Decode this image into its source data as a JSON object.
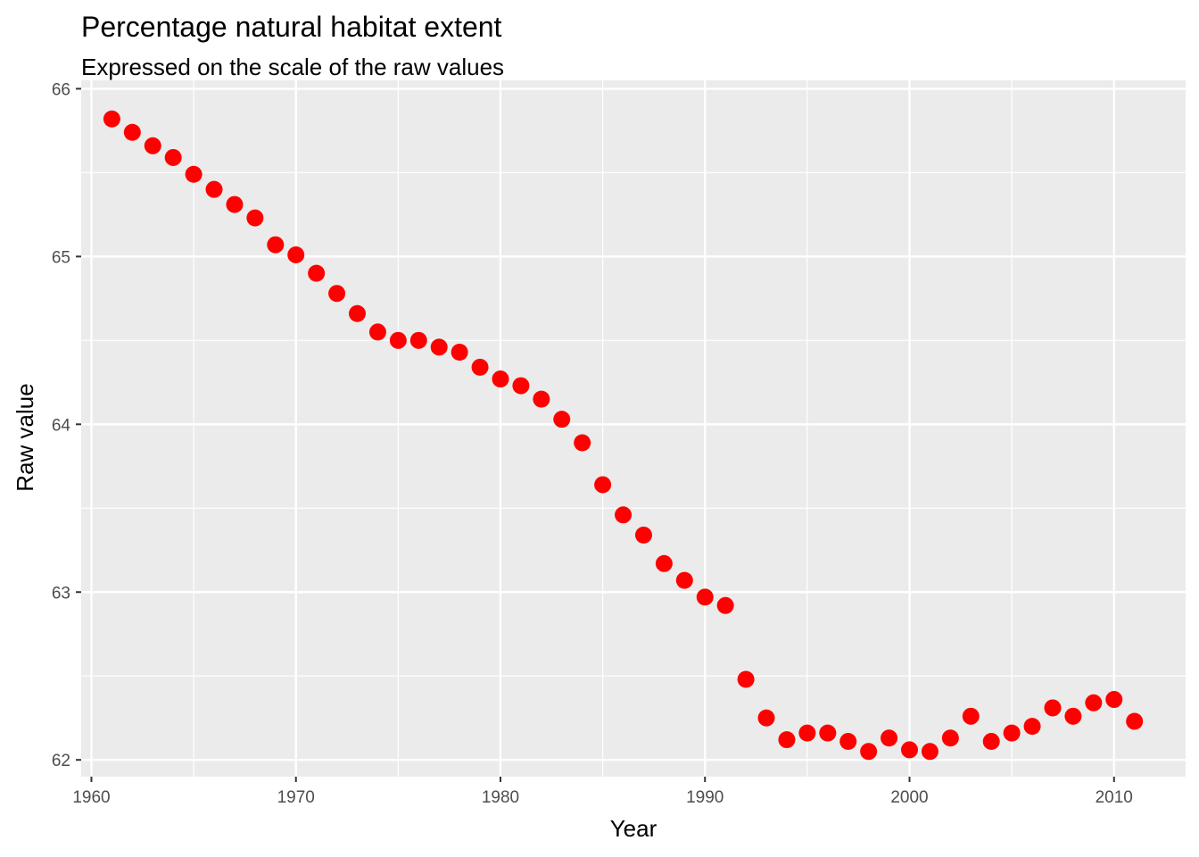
{
  "chart_data": {
    "type": "scatter",
    "title": "Percentage natural habitat extent",
    "subtitle": "Expressed on the scale of the raw values",
    "xlabel": "Year",
    "ylabel": "Raw value",
    "xlim": [
      1959.5,
      2013.5
    ],
    "ylim": [
      61.9,
      66.05
    ],
    "x_ticks": [
      1960,
      1970,
      1980,
      1990,
      2000,
      2010
    ],
    "y_ticks": [
      62,
      63,
      64,
      65,
      66
    ],
    "grid": true,
    "point_color": "#ff0000",
    "panel_color": "#ebebeb",
    "x": [
      1961,
      1962,
      1963,
      1964,
      1965,
      1966,
      1967,
      1968,
      1969,
      1970,
      1971,
      1972,
      1973,
      1974,
      1975,
      1976,
      1977,
      1978,
      1979,
      1980,
      1981,
      1982,
      1983,
      1984,
      1985,
      1986,
      1987,
      1988,
      1989,
      1990,
      1991,
      1992,
      1993,
      1994,
      1995,
      1996,
      1997,
      1998,
      1999,
      2000,
      2001,
      2002,
      2003,
      2004,
      2005,
      2006,
      2007,
      2008,
      2009,
      2010,
      2011
    ],
    "y": [
      65.82,
      65.74,
      65.66,
      65.59,
      65.49,
      65.4,
      65.31,
      65.23,
      65.07,
      65.01,
      64.9,
      64.78,
      64.66,
      64.55,
      64.5,
      64.5,
      64.46,
      64.43,
      64.34,
      64.27,
      64.23,
      64.15,
      64.03,
      63.89,
      63.64,
      63.46,
      63.34,
      63.17,
      63.07,
      62.97,
      62.92,
      62.48,
      62.25,
      62.12,
      62.16,
      62.16,
      62.11,
      62.05,
      62.13,
      62.06,
      62.05,
      62.13,
      62.26,
      62.11,
      62.16,
      62.2,
      62.31,
      62.26,
      62.34,
      62.36,
      62.23
    ]
  }
}
